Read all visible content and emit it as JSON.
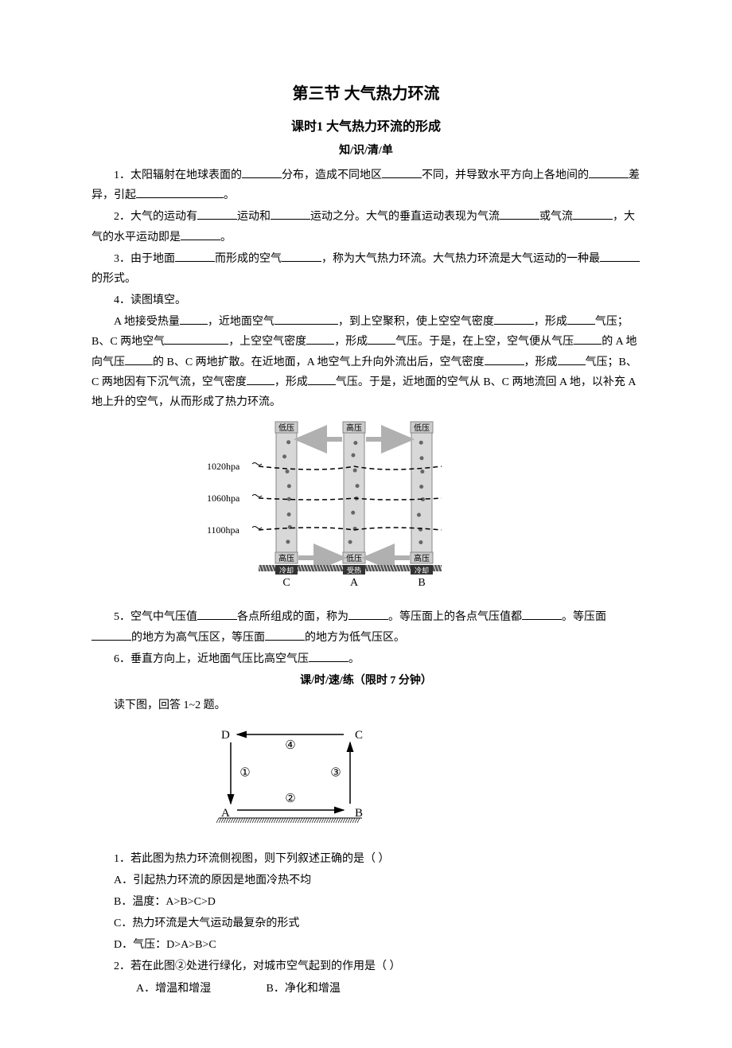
{
  "title_main": "第三节 大气热力环流",
  "title_sub": "课时1 大气热力环流的形成",
  "title_section1": "知/识/清/单",
  "title_section2": "课/时/速/练（限时 7 分钟）",
  "p1a": "1．太阳辐射在地球表面的",
  "p1b": "分布，造成不同地区",
  "p1c": "不同，并导致水平方向上各地间的",
  "p1d": "差异，引起",
  "p1e": "。",
  "p2a": "2．大气的运动有",
  "p2b": "运动和",
  "p2c": "运动之分。大气的垂直运动表现为气流",
  "p2d": "或气流",
  "p2e": "，大气的水平运动即是",
  "p2f": "。",
  "p3a": "3．由于地面",
  "p3b": "而形成的空气",
  "p3c": "，称为大气热力环流。大气热力环流是大气运动的一种最",
  "p3d": "的形式。",
  "p4": "4．读图填空。",
  "p4a": "A 地接受热量",
  "p4b": "，近地面空气",
  "p4c": "，到上空聚积，使上空空气密度",
  "p4d": "，形成",
  "p4e": "气压；B、C 两地空气",
  "p4f": "，上空空气密度",
  "p4g": "，形成",
  "p4h": "气压。于是，在上空，空气便从气压",
  "p4i": "的 A 地向气压",
  "p4j": "的 B、C 两地扩散。在近地面，A 地空气上升向外流出后，空气密度",
  "p4k": "，形成",
  "p4l": "气压；B、C 两地因有下沉气流，空气密度",
  "p4m": "，形成",
  "p4n": "气压。于是，近地面的空气从 B、C 两地流回 A 地，以补充 A 地上升的空气，从而形成了热力环流。",
  "p5a": "5．空气中气压值",
  "p5b": "各点所组成的面，称为",
  "p5c": "。等压面上的各点气压值都",
  "p5d": "。等压面",
  "p5e": "的地方为高气压区，等压面",
  "p5f": "的地方为低气压区。",
  "p6a": "6．垂直方向上，近地面气压比高空气压",
  "p6b": "。",
  "ex_intro": "读下图，回答 1~2 题。",
  "q1": "1．若此图为热力环流侧视图，则下列叙述正确的是（ ）",
  "q1a": "A．引起热力环流的原因是地面冷热不均",
  "q1b": "B．温度：A>B>C>D",
  "q1c": "C．热力环流是大气运动最复杂的形式",
  "q1d": "D．气压：D>A>B>C",
  "q2": "2．若在此图②处进行绿化，对城市空气起到的作用是（ ）",
  "q2a": "A．增温和增湿",
  "q2b": "B．净化和增温",
  "diagram1": {
    "pressure_labels": [
      "1020hpa",
      "1060hpa",
      "1100hpa"
    ],
    "top_labels": [
      "低压",
      "高压",
      "低压"
    ],
    "bottom_labels": [
      "高压",
      "低压",
      "高压"
    ],
    "ground_labels": [
      "冷却",
      "受热",
      "冷却"
    ],
    "col_labels": [
      "C",
      "A",
      "B"
    ],
    "colors": {
      "arrow_fill": "#b0b0b0",
      "box_fill": "#d8d8d8",
      "box_stroke": "#888888",
      "text": "#000000",
      "ground": "#555555"
    }
  },
  "diagram2": {
    "corners": [
      "D",
      "C",
      "A",
      "B"
    ],
    "arrows": [
      "①",
      "②",
      "③",
      "④"
    ],
    "colors": {
      "line": "#000000",
      "text": "#000000"
    }
  }
}
